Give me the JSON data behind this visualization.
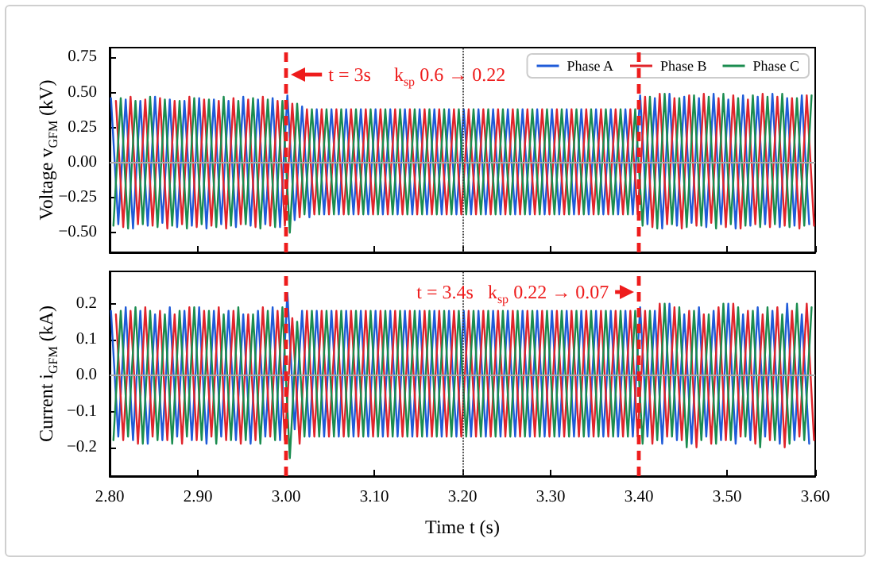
{
  "chart_data": [
    {
      "type": "line",
      "ylabel": "Voltage v$_{GFM}$ (kV)",
      "xlim": [
        2.8,
        3.6
      ],
      "xticks": [
        2.8,
        2.9,
        3.0,
        3.1,
        3.2,
        3.3,
        3.4,
        3.5,
        3.6
      ],
      "ylim": [
        -0.64,
        0.82
      ],
      "yticks": [
        {
          "value": -0.5,
          "label": "−0.50"
        },
        {
          "value": -0.25,
          "label": "−0.25"
        },
        {
          "value": 0,
          "label": "0.00"
        },
        {
          "value": 0.25,
          "label": "0.25"
        },
        {
          "value": 0.5,
          "label": "0.50"
        },
        {
          "value": 0.75,
          "label": "0.75"
        }
      ],
      "tick_labels": "y",
      "legend": "top right",
      "series": [
        {
          "name": "Phase A",
          "color": "#1f5bd8",
          "x": [
            2.8015,
            2.8098,
            2.8182,
            2.8265,
            2.8348,
            2.8432,
            2.8515,
            2.8598,
            2.8682,
            2.8765,
            2.8848,
            2.8932,
            2.9015,
            2.9098,
            2.9182,
            2.9265,
            2.9348,
            2.9432,
            2.9515,
            2.9598,
            2.9682,
            2.9765,
            2.9848,
            2.9932,
            3.0015,
            3.0098,
            3.0182,
            3.0265,
            3.0348,
            3.0432,
            3.0515,
            3.0598,
            3.0682,
            3.0765,
            3.0848,
            3.0932,
            3.1015,
            3.1098,
            3.1182,
            3.1265,
            3.1348,
            3.1432,
            3.1515,
            3.1598,
            3.1682,
            3.1765,
            3.1848,
            3.1932,
            3.2015,
            3.2098,
            3.2182,
            3.2265,
            3.2348,
            3.2432,
            3.2515,
            3.2598,
            3.2682,
            3.2765,
            3.2848,
            3.2932,
            3.3015,
            3.3098,
            3.3182,
            3.3265,
            3.3348,
            3.3432,
            3.3515,
            3.3598,
            3.3682,
            3.3765,
            3.3848,
            3.3932,
            3.4015,
            3.4098,
            3.4182,
            3.4265,
            3.4348,
            3.4432,
            3.4515,
            3.4598,
            3.4682,
            3.4765,
            3.4848,
            3.4932,
            3.5015,
            3.5098,
            3.5182,
            3.5265,
            3.5348,
            3.5432,
            3.5515,
            3.5598,
            3.5682,
            3.5765,
            3.5848,
            3.5932
          ],
          "values": [
            0.46,
            -0.44,
            0.45,
            -0.47,
            0.44,
            -0.45,
            0.47,
            -0.43,
            0.45,
            -0.46,
            0.44,
            -0.45,
            0.46,
            -0.47,
            0.45,
            -0.44,
            0.44,
            -0.46,
            0.47,
            -0.45,
            0.45,
            -0.44,
            0.46,
            -0.46,
            0.48,
            -0.41,
            0.4,
            -0.39,
            0.38,
            -0.37,
            0.38,
            -0.37,
            0.38,
            -0.37,
            0.38,
            -0.37,
            0.38,
            -0.37,
            0.38,
            -0.37,
            0.38,
            -0.37,
            0.38,
            -0.37,
            0.38,
            -0.37,
            0.38,
            -0.37,
            0.38,
            -0.37,
            0.38,
            -0.37,
            0.38,
            -0.37,
            0.38,
            -0.37,
            0.38,
            -0.37,
            0.38,
            -0.37,
            0.38,
            -0.37,
            0.38,
            -0.37,
            0.38,
            -0.37,
            0.38,
            -0.37,
            0.38,
            -0.37,
            0.38,
            -0.37,
            0.48,
            -0.44,
            0.46,
            -0.47,
            0.49,
            -0.45,
            0.47,
            -0.43,
            0.46,
            -0.46,
            0.49,
            -0.44,
            0.45,
            -0.47,
            0.48,
            -0.45,
            0.47,
            -0.44,
            0.49,
            -0.46,
            0.46,
            -0.45,
            0.48,
            -0.44
          ]
        },
        {
          "name": "Phase B",
          "color": "#e0242b",
          "x": [
            2.8071,
            2.8154,
            2.8237,
            2.8321,
            2.8404,
            2.8487,
            2.8571,
            2.8654,
            2.8737,
            2.8821,
            2.8904,
            2.8987,
            2.9071,
            2.9154,
            2.9237,
            2.9321,
            2.9404,
            2.9487,
            2.9571,
            2.9654,
            2.9737,
            2.9821,
            2.9904,
            2.9987,
            3.0071,
            3.0154,
            3.0237,
            3.0321,
            3.0404,
            3.0487,
            3.0571,
            3.0654,
            3.0737,
            3.0821,
            3.0904,
            3.0987,
            3.1071,
            3.1154,
            3.1237,
            3.1321,
            3.1404,
            3.1487,
            3.1571,
            3.1654,
            3.1737,
            3.1821,
            3.1904,
            3.1987,
            3.2071,
            3.2154,
            3.2237,
            3.2321,
            3.2404,
            3.2487,
            3.2571,
            3.2654,
            3.2737,
            3.2821,
            3.2904,
            3.2987,
            3.3071,
            3.3154,
            3.3237,
            3.3321,
            3.3404,
            3.3487,
            3.3571,
            3.3654,
            3.3737,
            3.3821,
            3.3904,
            3.3987,
            3.4071,
            3.4154,
            3.4237,
            3.4321,
            3.4404,
            3.4487,
            3.4571,
            3.4654,
            3.4737,
            3.4821,
            3.4904,
            3.4987,
            3.5071,
            3.5154,
            3.5237,
            3.5321,
            3.5404,
            3.5487,
            3.5571,
            3.5654,
            3.5737,
            3.5821,
            3.5904,
            3.5987
          ],
          "values": [
            0.44,
            -0.46,
            0.47,
            -0.44,
            0.45,
            -0.45,
            0.46,
            -0.47,
            0.44,
            -0.44,
            0.47,
            -0.46,
            0.45,
            -0.45,
            0.44,
            -0.47,
            0.46,
            -0.44,
            0.45,
            -0.46,
            0.47,
            -0.45,
            0.44,
            -0.45,
            0.42,
            -0.39,
            0.38,
            -0.37,
            0.38,
            -0.37,
            0.38,
            -0.37,
            0.38,
            -0.37,
            0.38,
            -0.37,
            0.38,
            -0.37,
            0.38,
            -0.37,
            0.38,
            -0.37,
            0.38,
            -0.37,
            0.38,
            -0.37,
            0.38,
            -0.37,
            0.38,
            -0.37,
            0.38,
            -0.37,
            0.38,
            -0.37,
            0.38,
            -0.37,
            0.38,
            -0.37,
            0.38,
            -0.37,
            0.38,
            -0.37,
            0.38,
            -0.37,
            0.38,
            -0.37,
            0.38,
            -0.37,
            0.38,
            -0.37,
            0.38,
            -0.37,
            0.47,
            -0.46,
            0.49,
            -0.44,
            0.46,
            -0.47,
            0.48,
            -0.45,
            0.49,
            -0.43,
            0.46,
            -0.46,
            0.48,
            -0.47,
            0.45,
            -0.44,
            0.49,
            -0.46,
            0.47,
            -0.45,
            0.46,
            -0.47,
            0.48,
            -0.45
          ]
        },
        {
          "name": "Phase C",
          "color": "#1a8c4f",
          "x": [
            2.8043,
            2.8126,
            2.8209,
            2.8293,
            2.8376,
            2.8459,
            2.8543,
            2.8626,
            2.8709,
            2.8793,
            2.8876,
            2.8959,
            2.9043,
            2.9126,
            2.9209,
            2.9293,
            2.9376,
            2.9459,
            2.9543,
            2.9626,
            2.9709,
            2.9793,
            2.9876,
            2.9959,
            3.0043,
            3.0126,
            3.0209,
            3.0293,
            3.0376,
            3.0459,
            3.0543,
            3.0626,
            3.0709,
            3.0793,
            3.0876,
            3.0959,
            3.1043,
            3.1126,
            3.1209,
            3.1293,
            3.1376,
            3.1459,
            3.1543,
            3.1626,
            3.1709,
            3.1793,
            3.1876,
            3.1959,
            3.2043,
            3.2126,
            3.2209,
            3.2293,
            3.2376,
            3.2459,
            3.2543,
            3.2626,
            3.2709,
            3.2793,
            3.2876,
            3.2959,
            3.3043,
            3.3126,
            3.3209,
            3.3293,
            3.3376,
            3.3459,
            3.3543,
            3.3626,
            3.3709,
            3.3793,
            3.3876,
            3.3959,
            3.4043,
            3.4126,
            3.4209,
            3.4293,
            3.4376,
            3.4459,
            3.4543,
            3.4626,
            3.4709,
            3.4793,
            3.4876,
            3.4959,
            3.5043,
            3.5126,
            3.5209,
            3.5293,
            3.5376,
            3.5459,
            3.5543,
            3.5626,
            3.5709,
            3.5793,
            3.5876,
            3.5959
          ],
          "values": [
            -0.45,
            0.46,
            -0.47,
            0.44,
            -0.44,
            0.47,
            -0.46,
            0.45,
            -0.45,
            0.44,
            -0.47,
            0.46,
            -0.44,
            0.45,
            -0.46,
            0.47,
            -0.45,
            0.44,
            -0.44,
            0.46,
            -0.47,
            0.45,
            -0.46,
            0.44,
            -0.5,
            0.42,
            -0.37,
            0.38,
            -0.37,
            0.38,
            -0.37,
            0.38,
            -0.37,
            0.38,
            -0.37,
            0.38,
            -0.37,
            0.38,
            -0.37,
            0.38,
            -0.37,
            0.38,
            -0.37,
            0.38,
            -0.37,
            0.38,
            -0.37,
            0.38,
            -0.37,
            0.38,
            -0.37,
            0.38,
            -0.37,
            0.38,
            -0.37,
            0.38,
            -0.37,
            0.38,
            -0.37,
            0.38,
            -0.37,
            0.38,
            -0.37,
            0.38,
            -0.37,
            0.38,
            -0.37,
            0.38,
            -0.37,
            0.38,
            -0.37,
            0.38,
            -0.45,
            0.47,
            -0.47,
            0.49,
            -0.44,
            0.46,
            -0.46,
            0.48,
            -0.45,
            0.47,
            -0.47,
            0.49,
            -0.44,
            0.46,
            -0.45,
            0.48,
            -0.46,
            0.47,
            -0.44,
            0.49,
            -0.46,
            0.46,
            -0.45,
            0.48
          ]
        }
      ],
      "ref_lines": [
        {
          "axis": "y",
          "value": 0,
          "color": "#aaaaaa",
          "line_style": "solid"
        },
        {
          "axis": "x",
          "value": 3.2,
          "color": "#333333",
          "line_style": "dotted"
        },
        {
          "axis": "x",
          "value": 3.0,
          "color": "#ee1c1c",
          "line_style": "dashed"
        },
        {
          "axis": "x",
          "value": 3.4,
          "color": "#ee1c1c",
          "line_style": "dashed"
        }
      ],
      "annotations": [
        "t = 3s",
        "k$_{sp}$ 0.6 → 0.22"
      ]
    },
    {
      "type": "line",
      "xlabel": "Time t (s)",
      "ylabel": "Current i$_{GFM}$ (kA)",
      "xlim": [
        2.8,
        3.6
      ],
      "xticks": [
        {
          "value": 2.8,
          "label": "2.80"
        },
        {
          "value": 2.9,
          "label": "2.90"
        },
        {
          "value": 3.0,
          "label": "3.00"
        },
        {
          "value": 3.1,
          "label": "3.10"
        },
        {
          "value": 3.2,
          "label": "3.20"
        },
        {
          "value": 3.3,
          "label": "3.30"
        },
        {
          "value": 3.4,
          "label": "3.40"
        },
        {
          "value": 3.5,
          "label": "3.50"
        },
        {
          "value": 3.6,
          "label": "3.60"
        }
      ],
      "ylim": [
        -0.28,
        0.29
      ],
      "yticks": [
        {
          "value": -0.2,
          "label": "−0.2"
        },
        {
          "value": -0.1,
          "label": "−0.1"
        },
        {
          "value": 0,
          "label": "0.0"
        },
        {
          "value": 0.1,
          "label": "0.1"
        },
        {
          "value": 0.2,
          "label": "0.2"
        }
      ],
      "series": [
        {
          "color": "#1f5bd8",
          "x": [
            2.8015,
            2.8098,
            2.8182,
            2.8265,
            2.8348,
            2.8432,
            2.8515,
            2.8598,
            2.8682,
            2.8765,
            2.8848,
            2.8932,
            2.9015,
            2.9098,
            2.9182,
            2.9265,
            2.9348,
            2.9432,
            2.9515,
            2.9598,
            2.9682,
            2.9765,
            2.9848,
            2.9932,
            3.0015,
            3.0098,
            3.0182,
            3.0265,
            3.0348,
            3.0432,
            3.0515,
            3.0598,
            3.0682,
            3.0765,
            3.0848,
            3.0932,
            3.1015,
            3.1098,
            3.1182,
            3.1265,
            3.1348,
            3.1432,
            3.1515,
            3.1598,
            3.1682,
            3.1765,
            3.1848,
            3.1932,
            3.2015,
            3.2098,
            3.2182,
            3.2265,
            3.2348,
            3.2432,
            3.2515,
            3.2598,
            3.2682,
            3.2765,
            3.2848,
            3.2932,
            3.3015,
            3.3098,
            3.3182,
            3.3265,
            3.3348,
            3.3432,
            3.3515,
            3.3598,
            3.3682,
            3.3765,
            3.3848,
            3.3932,
            3.4015,
            3.4098,
            3.4182,
            3.4265,
            3.4348,
            3.4432,
            3.4515,
            3.4598,
            3.4682,
            3.4765,
            3.4848,
            3.4932,
            3.5015,
            3.5098,
            3.5182,
            3.5265,
            3.5348,
            3.5432,
            3.5515,
            3.5598,
            3.5682,
            3.5765,
            3.5848,
            3.5932
          ],
          "values": [
            0.18,
            -0.17,
            0.19,
            -0.18,
            0.18,
            -0.19,
            0.17,
            -0.18,
            0.19,
            -0.17,
            0.18,
            -0.18,
            0.19,
            -0.19,
            0.18,
            -0.17,
            0.18,
            -0.18,
            0.17,
            -0.19,
            0.18,
            -0.17,
            0.19,
            -0.18,
            0.23,
            -0.15,
            0.18,
            -0.17,
            0.18,
            -0.17,
            0.18,
            -0.17,
            0.18,
            -0.17,
            0.18,
            -0.17,
            0.18,
            -0.17,
            0.18,
            -0.17,
            0.18,
            -0.17,
            0.18,
            -0.17,
            0.18,
            -0.17,
            0.18,
            -0.17,
            0.18,
            -0.17,
            0.18,
            -0.17,
            0.18,
            -0.17,
            0.18,
            -0.17,
            0.18,
            -0.17,
            0.18,
            -0.17,
            0.18,
            -0.17,
            0.18,
            -0.17,
            0.18,
            -0.17,
            0.18,
            -0.17,
            0.18,
            -0.17,
            0.18,
            -0.17,
            0.19,
            -0.17,
            0.18,
            -0.19,
            0.2,
            -0.18,
            0.17,
            -0.19,
            0.19,
            -0.17,
            0.18,
            -0.18,
            0.2,
            -0.19,
            0.17,
            -0.18,
            0.19,
            -0.17,
            0.18,
            -0.19,
            0.2,
            -0.18,
            0.17,
            -0.19
          ]
        },
        {
          "color": "#e0242b",
          "x": [
            2.8071,
            2.8154,
            2.8237,
            2.8321,
            2.8404,
            2.8487,
            2.8571,
            2.8654,
            2.8737,
            2.8821,
            2.8904,
            2.8987,
            2.9071,
            2.9154,
            2.9237,
            2.9321,
            2.9404,
            2.9487,
            2.9571,
            2.9654,
            2.9737,
            2.9821,
            2.9904,
            2.9987,
            3.0071,
            3.0154,
            3.0237,
            3.0321,
            3.0404,
            3.0487,
            3.0571,
            3.0654,
            3.0737,
            3.0821,
            3.0904,
            3.0987,
            3.1071,
            3.1154,
            3.1237,
            3.1321,
            3.1404,
            3.1487,
            3.1571,
            3.1654,
            3.1737,
            3.1821,
            3.1904,
            3.1987,
            3.2071,
            3.2154,
            3.2237,
            3.2321,
            3.2404,
            3.2487,
            3.2571,
            3.2654,
            3.2737,
            3.2821,
            3.2904,
            3.2987,
            3.3071,
            3.3154,
            3.3237,
            3.3321,
            3.3404,
            3.3487,
            3.3571,
            3.3654,
            3.3737,
            3.3821,
            3.3904,
            3.3987,
            3.4071,
            3.4154,
            3.4237,
            3.4321,
            3.4404,
            3.4487,
            3.4571,
            3.4654,
            3.4737,
            3.4821,
            3.4904,
            3.4987,
            3.5071,
            3.5154,
            3.5237,
            3.5321,
            3.5404,
            3.5487,
            3.5571,
            3.5654,
            3.5737,
            3.5821,
            3.5904,
            3.5987
          ],
          "values": [
            0.17,
            -0.18,
            0.18,
            -0.19,
            0.19,
            -0.17,
            0.18,
            -0.18,
            0.17,
            -0.19,
            0.19,
            -0.18,
            0.18,
            -0.17,
            0.19,
            -0.18,
            0.18,
            -0.19,
            0.17,
            -0.18,
            0.19,
            -0.17,
            0.18,
            -0.18,
            0.16,
            -0.19,
            0.18,
            -0.17,
            0.18,
            -0.17,
            0.18,
            -0.17,
            0.18,
            -0.17,
            0.18,
            -0.17,
            0.18,
            -0.17,
            0.18,
            -0.17,
            0.18,
            -0.17,
            0.18,
            -0.17,
            0.18,
            -0.17,
            0.18,
            -0.17,
            0.18,
            -0.17,
            0.18,
            -0.17,
            0.18,
            -0.17,
            0.18,
            -0.17,
            0.18,
            -0.17,
            0.18,
            -0.17,
            0.18,
            -0.17,
            0.18,
            -0.17,
            0.18,
            -0.17,
            0.18,
            -0.17,
            0.18,
            -0.17,
            0.18,
            -0.17,
            0.18,
            -0.19,
            0.2,
            -0.17,
            0.19,
            -0.18,
            0.18,
            -0.2,
            0.17,
            -0.19,
            0.19,
            -0.18,
            0.2,
            -0.17,
            0.18,
            -0.19,
            0.17,
            -0.18,
            0.19,
            -0.2,
            0.18,
            -0.17,
            0.2,
            -0.18
          ]
        },
        {
          "color": "#1a8c4f",
          "x": [
            2.8043,
            2.8126,
            2.8209,
            2.8293,
            2.8376,
            2.8459,
            2.8543,
            2.8626,
            2.8709,
            2.8793,
            2.8876,
            2.8959,
            2.9043,
            2.9126,
            2.9209,
            2.9293,
            2.9376,
            2.9459,
            2.9543,
            2.9626,
            2.9709,
            2.9793,
            2.9876,
            2.9959,
            3.0043,
            3.0126,
            3.0209,
            3.0293,
            3.0376,
            3.0459,
            3.0543,
            3.0626,
            3.0709,
            3.0793,
            3.0876,
            3.0959,
            3.1043,
            3.1126,
            3.1209,
            3.1293,
            3.1376,
            3.1459,
            3.1543,
            3.1626,
            3.1709,
            3.1793,
            3.1876,
            3.1959,
            3.2043,
            3.2126,
            3.2209,
            3.2293,
            3.2376,
            3.2459,
            3.2543,
            3.2626,
            3.2709,
            3.2793,
            3.2876,
            3.2959,
            3.3043,
            3.3126,
            3.3209,
            3.3293,
            3.3376,
            3.3459,
            3.3543,
            3.3626,
            3.3709,
            3.3793,
            3.3876,
            3.3959,
            3.4043,
            3.4126,
            3.4209,
            3.4293,
            3.4376,
            3.4459,
            3.4543,
            3.4626,
            3.4709,
            3.4793,
            3.4876,
            3.4959,
            3.5043,
            3.5126,
            3.5209,
            3.5293,
            3.5376,
            3.5459,
            3.5543,
            3.5626,
            3.5709,
            3.5793,
            3.5876,
            3.5959
          ],
          "values": [
            -0.18,
            0.18,
            -0.17,
            0.19,
            -0.19,
            0.18,
            -0.18,
            0.17,
            -0.19,
            0.18,
            -0.17,
            0.19,
            -0.18,
            0.18,
            -0.19,
            0.17,
            -0.18,
            0.19,
            -0.18,
            0.17,
            -0.19,
            0.18,
            -0.18,
            0.19,
            -0.23,
            0.15,
            -0.17,
            0.18,
            -0.17,
            0.18,
            -0.17,
            0.18,
            -0.17,
            0.18,
            -0.17,
            0.18,
            -0.17,
            0.18,
            -0.17,
            0.18,
            -0.17,
            0.18,
            -0.17,
            0.18,
            -0.17,
            0.18,
            -0.17,
            0.18,
            -0.17,
            0.18,
            -0.17,
            0.18,
            -0.17,
            0.18,
            -0.17,
            0.18,
            -0.17,
            0.18,
            -0.17,
            0.18,
            -0.17,
            0.18,
            -0.17,
            0.18,
            -0.17,
            0.18,
            -0.17,
            0.18,
            -0.17,
            0.18,
            -0.17,
            0.18,
            -0.19,
            0.18,
            -0.18,
            0.2,
            -0.17,
            0.19,
            -0.2,
            0.18,
            -0.18,
            0.17,
            -0.19,
            0.2,
            -0.18,
            0.19,
            -0.17,
            0.18,
            -0.2,
            0.19,
            -0.18,
            0.17,
            -0.19,
            0.2,
            -0.18,
            0.19
          ]
        }
      ],
      "ref_lines": [
        {
          "axis": "y",
          "value": 0,
          "color": "#aaaaaa",
          "line_style": "solid"
        },
        {
          "axis": "x",
          "value": 3.2,
          "color": "#333333",
          "line_style": "dotted"
        },
        {
          "axis": "x",
          "value": 3.0,
          "color": "#ee1c1c",
          "line_style": "dashed"
        },
        {
          "axis": "x",
          "value": 3.4,
          "color": "#ee1c1c",
          "line_style": "dashed"
        }
      ],
      "annotations": [
        "t = 3.4s",
        "k$_{sp}$ 0.22 → 0.07"
      ]
    }
  ]
}
